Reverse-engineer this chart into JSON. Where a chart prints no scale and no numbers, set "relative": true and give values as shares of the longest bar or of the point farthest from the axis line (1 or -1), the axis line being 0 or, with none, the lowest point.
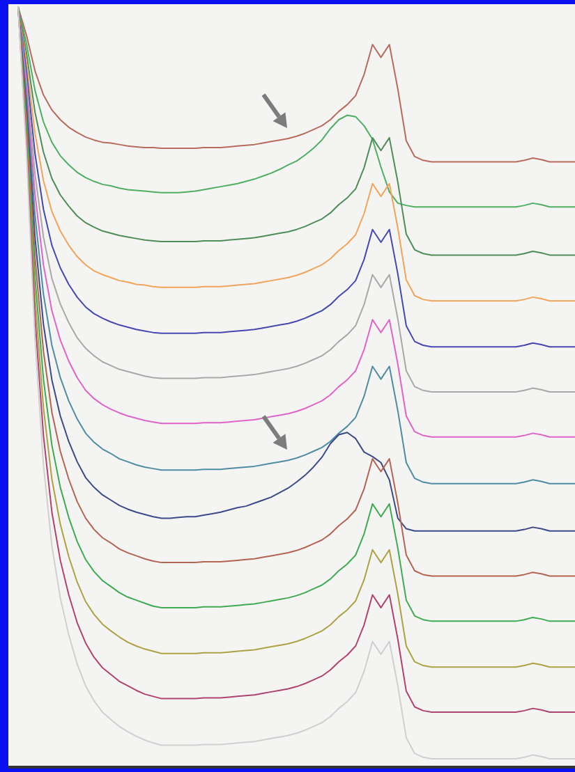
{
  "chart_data": {
    "type": "line",
    "relative": true,
    "categories": [
      null,
      null,
      null,
      null,
      null,
      null,
      null,
      null,
      null,
      null,
      null,
      null,
      null,
      null,
      null,
      null,
      null,
      null,
      null,
      null,
      null,
      null,
      null,
      null,
      null,
      null,
      null,
      null,
      null,
      null,
      null,
      null,
      null,
      null,
      null,
      null,
      null,
      null,
      null,
      null,
      null,
      null,
      null,
      null,
      null,
      null,
      null,
      null,
      null,
      null,
      null,
      null,
      null,
      null,
      null,
      null,
      null,
      null,
      null,
      null,
      null,
      null,
      null,
      null,
      null,
      null,
      null
    ],
    "series": [
      {
        "color": "#b86a5c",
        "values": [
          1.0,
          0.962,
          0.915,
          0.883,
          0.863,
          0.85,
          0.84,
          0.833,
          0.827,
          0.823,
          0.82,
          0.819,
          0.817,
          0.815,
          0.814,
          0.813,
          0.813,
          0.812,
          0.812,
          0.812,
          0.812,
          0.812,
          0.813,
          0.813,
          0.813,
          0.814,
          0.815,
          0.816,
          0.817,
          0.819,
          0.821,
          0.823,
          0.825,
          0.828,
          0.832,
          0.837,
          0.842,
          0.85,
          0.861,
          0.87,
          0.882,
          0.91,
          0.95,
          0.933,
          0.95,
          0.891,
          0.822,
          0.801,
          0.796,
          0.794,
          0.794,
          0.794,
          0.794,
          0.794,
          0.794,
          0.794,
          0.794,
          0.794,
          0.794,
          0.794,
          0.796,
          0.799,
          0.797,
          0.794,
          0.794,
          0.794,
          0.794
        ]
      },
      {
        "color": "#4fae62",
        "values": [
          1.0,
          0.951,
          0.889,
          0.847,
          0.82,
          0.802,
          0.79,
          0.78,
          0.773,
          0.768,
          0.764,
          0.762,
          0.759,
          0.757,
          0.756,
          0.755,
          0.754,
          0.753,
          0.753,
          0.753,
          0.754,
          0.755,
          0.757,
          0.759,
          0.761,
          0.763,
          0.765,
          0.768,
          0.771,
          0.775,
          0.779,
          0.784,
          0.79,
          0.795,
          0.803,
          0.812,
          0.823,
          0.838,
          0.85,
          0.856,
          0.854,
          0.842,
          0.824,
          0.787,
          0.754,
          0.739,
          0.736,
          0.734,
          0.734,
          0.734,
          0.734,
          0.734,
          0.734,
          0.734,
          0.734,
          0.734,
          0.734,
          0.734,
          0.734,
          0.734,
          0.736,
          0.739,
          0.737,
          0.734,
          0.734,
          0.734,
          0.734
        ]
      },
      {
        "color": "#4e8c58",
        "values": [
          1.0,
          0.938,
          0.86,
          0.807,
          0.772,
          0.75,
          0.735,
          0.722,
          0.713,
          0.707,
          0.702,
          0.699,
          0.696,
          0.694,
          0.692,
          0.69,
          0.689,
          0.688,
          0.688,
          0.688,
          0.688,
          0.688,
          0.689,
          0.689,
          0.689,
          0.69,
          0.691,
          0.692,
          0.693,
          0.695,
          0.697,
          0.699,
          0.701,
          0.704,
          0.708,
          0.713,
          0.718,
          0.726,
          0.737,
          0.746,
          0.758,
          0.786,
          0.826,
          0.809,
          0.826,
          0.767,
          0.698,
          0.677,
          0.672,
          0.67,
          0.67,
          0.67,
          0.67,
          0.67,
          0.67,
          0.67,
          0.67,
          0.67,
          0.67,
          0.67,
          0.672,
          0.675,
          0.673,
          0.67,
          0.67,
          0.67,
          0.67
        ]
      },
      {
        "color": "#f2a45a",
        "values": [
          1.0,
          0.925,
          0.832,
          0.769,
          0.728,
          0.702,
          0.683,
          0.668,
          0.657,
          0.649,
          0.644,
          0.64,
          0.636,
          0.634,
          0.631,
          0.63,
          0.628,
          0.627,
          0.627,
          0.627,
          0.627,
          0.627,
          0.628,
          0.628,
          0.628,
          0.629,
          0.63,
          0.631,
          0.632,
          0.634,
          0.636,
          0.638,
          0.64,
          0.643,
          0.647,
          0.652,
          0.657,
          0.665,
          0.676,
          0.685,
          0.697,
          0.725,
          0.765,
          0.748,
          0.765,
          0.706,
          0.637,
          0.616,
          0.611,
          0.609,
          0.609,
          0.609,
          0.609,
          0.609,
          0.609,
          0.609,
          0.609,
          0.609,
          0.609,
          0.609,
          0.611,
          0.614,
          0.612,
          0.609,
          0.609,
          0.609,
          0.609
        ]
      },
      {
        "color": "#4448b0",
        "values": [
          1.0,
          0.913,
          0.805,
          0.731,
          0.683,
          0.653,
          0.631,
          0.614,
          0.601,
          0.592,
          0.586,
          0.581,
          0.577,
          0.574,
          0.571,
          0.569,
          0.567,
          0.566,
          0.566,
          0.566,
          0.566,
          0.566,
          0.567,
          0.567,
          0.567,
          0.568,
          0.569,
          0.57,
          0.571,
          0.573,
          0.575,
          0.577,
          0.579,
          0.582,
          0.586,
          0.591,
          0.596,
          0.604,
          0.615,
          0.624,
          0.636,
          0.664,
          0.704,
          0.687,
          0.704,
          0.645,
          0.576,
          0.555,
          0.55,
          0.548,
          0.548,
          0.548,
          0.548,
          0.548,
          0.548,
          0.548,
          0.548,
          0.548,
          0.548,
          0.548,
          0.55,
          0.553,
          0.551,
          0.548,
          0.548,
          0.548,
          0.548
        ]
      },
      {
        "color": "#a8a8a8",
        "values": [
          1.0,
          0.901,
          0.778,
          0.694,
          0.639,
          0.605,
          0.58,
          0.56,
          0.546,
          0.536,
          0.528,
          0.523,
          0.518,
          0.515,
          0.512,
          0.509,
          0.507,
          0.506,
          0.506,
          0.506,
          0.506,
          0.506,
          0.507,
          0.507,
          0.507,
          0.508,
          0.509,
          0.51,
          0.511,
          0.513,
          0.515,
          0.517,
          0.519,
          0.522,
          0.526,
          0.531,
          0.536,
          0.544,
          0.555,
          0.564,
          0.576,
          0.604,
          0.644,
          0.627,
          0.644,
          0.585,
          0.516,
          0.495,
          0.49,
          0.488,
          0.488,
          0.488,
          0.488,
          0.488,
          0.488,
          0.488,
          0.488,
          0.488,
          0.488,
          0.488,
          0.49,
          0.493,
          0.491,
          0.488,
          0.488,
          0.488,
          0.488
        ]
      },
      {
        "color": "#e064c8",
        "values": [
          1.0,
          0.889,
          0.751,
          0.657,
          0.596,
          0.557,
          0.529,
          0.507,
          0.49,
          0.479,
          0.471,
          0.465,
          0.46,
          0.456,
          0.453,
          0.45,
          0.448,
          0.446,
          0.446,
          0.446,
          0.446,
          0.446,
          0.447,
          0.447,
          0.447,
          0.448,
          0.449,
          0.45,
          0.451,
          0.453,
          0.455,
          0.457,
          0.459,
          0.462,
          0.466,
          0.471,
          0.476,
          0.484,
          0.495,
          0.504,
          0.516,
          0.544,
          0.584,
          0.567,
          0.584,
          0.525,
          0.456,
          0.435,
          0.43,
          0.428,
          0.428,
          0.428,
          0.428,
          0.428,
          0.428,
          0.428,
          0.428,
          0.428,
          0.428,
          0.428,
          0.43,
          0.433,
          0.431,
          0.428,
          0.428,
          0.428,
          0.428
        ]
      },
      {
        "color": "#4f8ca2",
        "values": [
          1.0,
          0.877,
          0.723,
          0.618,
          0.55,
          0.507,
          0.476,
          0.452,
          0.433,
          0.421,
          0.412,
          0.406,
          0.399,
          0.395,
          0.391,
          0.388,
          0.386,
          0.384,
          0.384,
          0.384,
          0.384,
          0.384,
          0.385,
          0.385,
          0.385,
          0.386,
          0.387,
          0.388,
          0.389,
          0.391,
          0.393,
          0.395,
          0.397,
          0.4,
          0.404,
          0.409,
          0.414,
          0.422,
          0.433,
          0.442,
          0.454,
          0.482,
          0.522,
          0.505,
          0.522,
          0.463,
          0.394,
          0.373,
          0.368,
          0.366,
          0.366,
          0.366,
          0.366,
          0.366,
          0.366,
          0.366,
          0.366,
          0.366,
          0.366,
          0.366,
          0.368,
          0.371,
          0.369,
          0.366,
          0.366,
          0.366,
          0.366
        ]
      },
      {
        "color": "#3c4888",
        "values": [
          1.0,
          0.864,
          0.694,
          0.578,
          0.504,
          0.456,
          0.422,
          0.395,
          0.374,
          0.361,
          0.351,
          0.344,
          0.337,
          0.332,
          0.328,
          0.325,
          0.322,
          0.32,
          0.32,
          0.321,
          0.322,
          0.322,
          0.324,
          0.326,
          0.328,
          0.331,
          0.334,
          0.336,
          0.34,
          0.344,
          0.348,
          0.354,
          0.36,
          0.368,
          0.377,
          0.388,
          0.401,
          0.419,
          0.431,
          0.434,
          0.426,
          0.408,
          0.402,
          0.394,
          0.371,
          0.32,
          0.306,
          0.303,
          0.303,
          0.303,
          0.303,
          0.303,
          0.303,
          0.303,
          0.303,
          0.303,
          0.303,
          0.303,
          0.303,
          0.303,
          0.305,
          0.308,
          0.306,
          0.303,
          0.303,
          0.303,
          0.303
        ]
      },
      {
        "color": "#b46452",
        "values": [
          1.0,
          0.852,
          0.667,
          0.542,
          0.461,
          0.409,
          0.372,
          0.342,
          0.32,
          0.305,
          0.294,
          0.287,
          0.279,
          0.274,
          0.27,
          0.266,
          0.263,
          0.261,
          0.261,
          0.261,
          0.261,
          0.261,
          0.262,
          0.262,
          0.262,
          0.263,
          0.264,
          0.265,
          0.266,
          0.268,
          0.27,
          0.272,
          0.274,
          0.277,
          0.281,
          0.286,
          0.291,
          0.299,
          0.31,
          0.319,
          0.331,
          0.359,
          0.399,
          0.382,
          0.399,
          0.34,
          0.271,
          0.25,
          0.245,
          0.243,
          0.243,
          0.243,
          0.243,
          0.243,
          0.243,
          0.243,
          0.243,
          0.243,
          0.243,
          0.243,
          0.245,
          0.248,
          0.246,
          0.243,
          0.243,
          0.243,
          0.243
        ]
      },
      {
        "color": "#3eaa52",
        "values": [
          1.0,
          0.84,
          0.64,
          0.505,
          0.417,
          0.361,
          0.321,
          0.289,
          0.265,
          0.249,
          0.237,
          0.229,
          0.221,
          0.215,
          0.211,
          0.207,
          0.203,
          0.201,
          0.201,
          0.201,
          0.201,
          0.201,
          0.202,
          0.202,
          0.202,
          0.203,
          0.204,
          0.205,
          0.206,
          0.208,
          0.21,
          0.212,
          0.214,
          0.217,
          0.221,
          0.226,
          0.231,
          0.239,
          0.25,
          0.259,
          0.271,
          0.299,
          0.339,
          0.322,
          0.339,
          0.28,
          0.211,
          0.19,
          0.185,
          0.183,
          0.183,
          0.183,
          0.183,
          0.183,
          0.183,
          0.183,
          0.183,
          0.183,
          0.183,
          0.183,
          0.185,
          0.188,
          0.186,
          0.183,
          0.183,
          0.183,
          0.183
        ]
      },
      {
        "color": "#aca244",
        "values": [
          1.0,
          0.828,
          0.613,
          0.467,
          0.372,
          0.312,
          0.269,
          0.235,
          0.209,
          0.192,
          0.179,
          0.17,
          0.162,
          0.155,
          0.15,
          0.146,
          0.143,
          0.14,
          0.14,
          0.14,
          0.14,
          0.14,
          0.141,
          0.141,
          0.141,
          0.142,
          0.143,
          0.144,
          0.145,
          0.147,
          0.149,
          0.151,
          0.153,
          0.156,
          0.16,
          0.165,
          0.17,
          0.178,
          0.189,
          0.198,
          0.21,
          0.238,
          0.278,
          0.261,
          0.278,
          0.219,
          0.15,
          0.129,
          0.124,
          0.122,
          0.122,
          0.122,
          0.122,
          0.122,
          0.122,
          0.122,
          0.122,
          0.122,
          0.122,
          0.122,
          0.124,
          0.127,
          0.125,
          0.122,
          0.122,
          0.122,
          0.122
        ]
      },
      {
        "color": "#b04272",
        "values": [
          1.0,
          0.816,
          0.586,
          0.43,
          0.328,
          0.264,
          0.218,
          0.181,
          0.154,
          0.135,
          0.121,
          0.112,
          0.103,
          0.097,
          0.091,
          0.086,
          0.083,
          0.08,
          0.08,
          0.08,
          0.08,
          0.08,
          0.081,
          0.081,
          0.081,
          0.082,
          0.083,
          0.084,
          0.085,
          0.087,
          0.089,
          0.091,
          0.093,
          0.096,
          0.1,
          0.105,
          0.11,
          0.118,
          0.129,
          0.138,
          0.15,
          0.178,
          0.218,
          0.201,
          0.218,
          0.159,
          0.09,
          0.069,
          0.064,
          0.062,
          0.062,
          0.062,
          0.062,
          0.062,
          0.062,
          0.062,
          0.062,
          0.062,
          0.062,
          0.062,
          0.064,
          0.067,
          0.065,
          0.062,
          0.062,
          0.062,
          0.062
        ]
      },
      {
        "color": "#cfcfcf",
        "values": [
          1.0,
          0.804,
          0.558,
          0.391,
          0.283,
          0.214,
          0.165,
          0.126,
          0.097,
          0.077,
          0.062,
          0.052,
          0.043,
          0.036,
          0.03,
          0.025,
          0.021,
          0.018,
          0.018,
          0.018,
          0.018,
          0.018,
          0.019,
          0.019,
          0.019,
          0.02,
          0.021,
          0.022,
          0.023,
          0.025,
          0.027,
          0.029,
          0.031,
          0.034,
          0.038,
          0.043,
          0.048,
          0.056,
          0.067,
          0.076,
          0.088,
          0.116,
          0.156,
          0.139,
          0.156,
          0.097,
          0.028,
          0.007,
          0.002,
          0,
          0,
          0,
          0,
          0,
          0,
          0,
          0,
          0,
          0,
          0,
          0.002,
          0.005,
          0.003,
          0,
          0,
          0,
          0
        ]
      }
    ]
  }
}
